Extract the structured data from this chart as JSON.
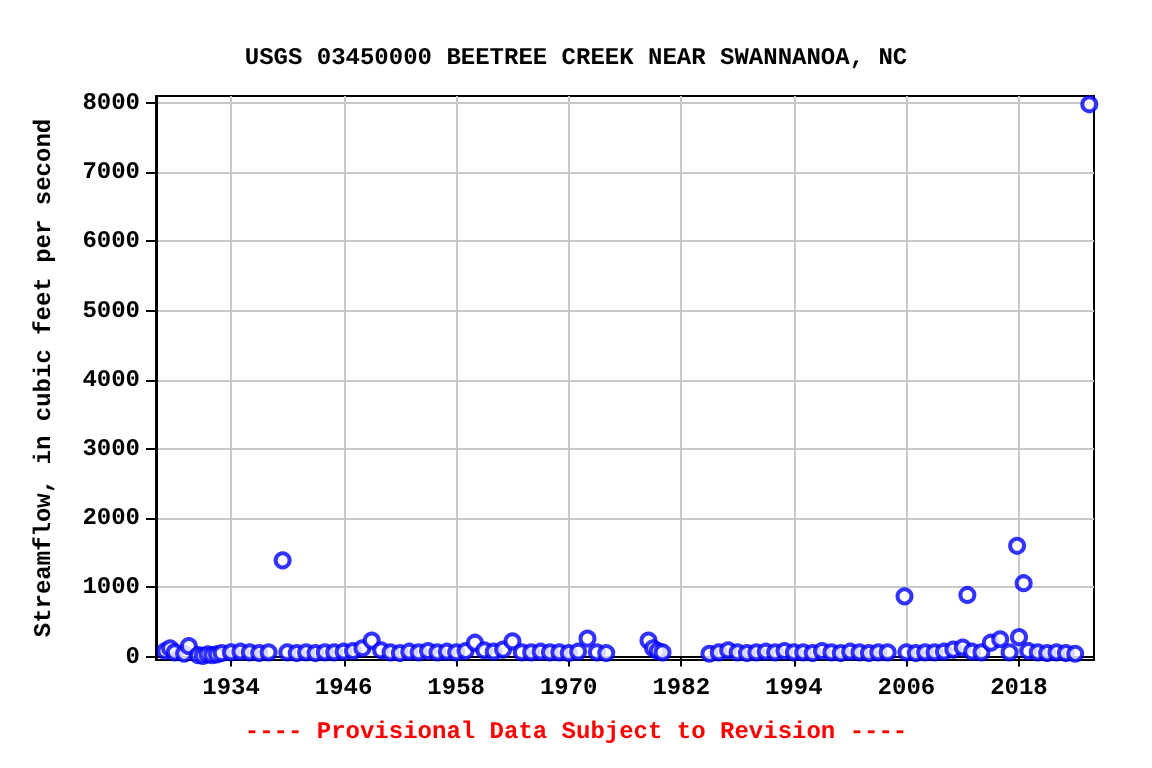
{
  "chart_data": {
    "type": "scatter",
    "title": "USGS 03450000 BEETREE CREEK NEAR SWANNANOA, NC",
    "ylabel": "Streamflow, in cubic feet per second",
    "annotations": [
      "---- Provisional Data Subject to Revision ----"
    ],
    "x": [
      1927,
      1927.5,
      1928,
      1929,
      1929.5,
      1930.5,
      1931,
      1931.5,
      1932,
      1932.5,
      1933,
      1934,
      1935,
      1936,
      1937,
      1938,
      1939.5,
      1940,
      1941,
      1942,
      1943,
      1944,
      1945,
      1946,
      1947,
      1948,
      1949,
      1950,
      1951,
      1952,
      1953,
      1954,
      1955,
      1956,
      1957,
      1958,
      1959,
      1960,
      1961,
      1962,
      1963,
      1964,
      1965,
      1966,
      1967,
      1968,
      1969,
      1970,
      1971,
      1972,
      1973,
      1974,
      1978.5,
      1979,
      1979.5,
      1980,
      1985,
      1986,
      1987,
      1988,
      1989,
      1990,
      1991,
      1992,
      1993,
      1994,
      1995,
      1996,
      1997,
      1998,
      1999,
      2000,
      2001,
      2002,
      2003,
      2004,
      2005.8,
      2006,
      2007,
      2008,
      2009,
      2010,
      2011,
      2012,
      2012.5,
      2013,
      2014,
      2015,
      2016,
      2017,
      2017.8,
      2018,
      2018.5,
      2019,
      2020,
      2021,
      2022,
      2023,
      2024,
      2025.5
    ],
    "series": [
      {
        "color": "#0000ff",
        "values": [
          80,
          120,
          60,
          40,
          150,
          20,
          10,
          30,
          20,
          30,
          50,
          60,
          70,
          60,
          50,
          60,
          1390,
          60,
          50,
          60,
          50,
          60,
          60,
          70,
          80,
          120,
          230,
          90,
          60,
          50,
          70,
          60,
          80,
          60,
          70,
          60,
          80,
          200,
          90,
          70,
          100,
          220,
          60,
          60,
          70,
          60,
          60,
          50,
          70,
          260,
          60,
          50,
          230,
          120,
          80,
          60,
          40,
          60,
          90,
          60,
          50,
          60,
          70,
          60,
          80,
          60,
          60,
          50,
          80,
          60,
          50,
          70,
          60,
          50,
          60,
          60,
          870,
          60,
          50,
          60,
          60,
          70,
          100,
          130,
          890,
          70,
          60,
          200,
          250,
          60,
          1600,
          280,
          1060,
          80,
          60,
          50,
          60,
          50,
          40,
          7980
        ]
      }
    ],
    "marker": "circle",
    "xlim": [
      1926,
      2026
    ],
    "xticks": [
      1934,
      1946,
      1958,
      1970,
      1982,
      1994,
      2006,
      2018
    ],
    "ylim": [
      -50,
      8100
    ],
    "yticks": [
      0,
      1000,
      2000,
      3000,
      4000,
      5000,
      6000,
      7000,
      8000
    ],
    "grid": true
  }
}
